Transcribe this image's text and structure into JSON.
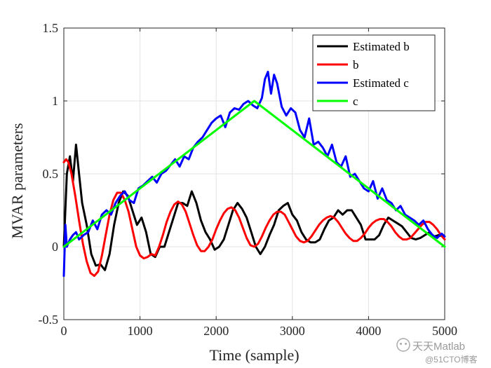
{
  "chart_data": {
    "type": "line",
    "title": "",
    "xlabel": "Time (sample)",
    "ylabel": "MVAR parameters",
    "xlim": [
      0,
      5000
    ],
    "ylim": [
      -0.5,
      1.5
    ],
    "xticks": [
      0,
      1000,
      2000,
      3000,
      4000,
      5000
    ],
    "xtick_labels": [
      "0",
      "1000",
      "2000",
      "3000",
      "4000",
      "5000"
    ],
    "yticks": [
      -0.5,
      0,
      0.5,
      1,
      1.5
    ],
    "ytick_labels": [
      "-0.5",
      "0",
      "0.5",
      "1",
      "1.5"
    ],
    "grid": true,
    "legend_position": "top-right",
    "series": [
      {
        "name": "Estimated b",
        "color": "#000000",
        "x": [
          0,
          40,
          80,
          120,
          160,
          200,
          240,
          300,
          360,
          420,
          480,
          540,
          600,
          660,
          720,
          780,
          840,
          900,
          960,
          1020,
          1080,
          1140,
          1200,
          1260,
          1320,
          1380,
          1440,
          1500,
          1560,
          1620,
          1680,
          1740,
          1800,
          1860,
          1920,
          1980,
          2040,
          2100,
          2160,
          2220,
          2280,
          2340,
          2400,
          2460,
          2520,
          2580,
          2640,
          2700,
          2760,
          2820,
          2880,
          2940,
          3000,
          3060,
          3120,
          3180,
          3240,
          3300,
          3360,
          3420,
          3480,
          3540,
          3600,
          3660,
          3720,
          3780,
          3840,
          3900,
          3960,
          4020,
          4080,
          4140,
          4200,
          4260,
          4320,
          4380,
          4440,
          4500,
          4560,
          4620,
          4680,
          4740,
          4800,
          4860,
          4920,
          4980
        ],
        "values": [
          0.0,
          0.5,
          0.62,
          0.45,
          0.7,
          0.5,
          0.3,
          0.15,
          -0.05,
          -0.13,
          -0.12,
          -0.16,
          -0.05,
          0.15,
          0.3,
          0.38,
          0.35,
          0.25,
          0.15,
          0.2,
          0.1,
          -0.05,
          -0.07,
          0.0,
          0.0,
          0.1,
          0.2,
          0.3,
          0.3,
          0.28,
          0.38,
          0.3,
          0.18,
          0.1,
          0.05,
          -0.02,
          0.0,
          0.05,
          0.15,
          0.25,
          0.3,
          0.26,
          0.2,
          0.1,
          0.0,
          -0.05,
          0.0,
          0.08,
          0.15,
          0.25,
          0.28,
          0.3,
          0.22,
          0.18,
          0.1,
          0.05,
          0.03,
          0.03,
          0.05,
          0.12,
          0.18,
          0.2,
          0.25,
          0.22,
          0.25,
          0.25,
          0.2,
          0.15,
          0.05,
          0.05,
          0.05,
          0.08,
          0.15,
          0.2,
          0.18,
          0.16,
          0.14,
          0.1,
          0.06,
          0.05,
          0.06,
          0.08,
          0.1,
          0.07,
          0.08,
          0.07
        ]
      },
      {
        "name": "b",
        "color": "#ff0000",
        "x": [
          0,
          30,
          60,
          100,
          150,
          200,
          250,
          300,
          350,
          400,
          450,
          500,
          550,
          600,
          650,
          700,
          750,
          800,
          850,
          900,
          950,
          1000,
          1050,
          1100,
          1150,
          1200,
          1250,
          1300,
          1350,
          1400,
          1450,
          1500,
          1550,
          1600,
          1650,
          1700,
          1750,
          1800,
          1850,
          1900,
          1950,
          2000,
          2050,
          2100,
          2150,
          2200,
          2250,
          2300,
          2350,
          2400,
          2450,
          2500,
          2550,
          2600,
          2650,
          2700,
          2750,
          2800,
          2850,
          2900,
          2950,
          3000,
          3050,
          3100,
          3150,
          3200,
          3250,
          3300,
          3350,
          3400,
          3450,
          3500,
          3550,
          3600,
          3650,
          3700,
          3750,
          3800,
          3850,
          3900,
          3950,
          4000,
          4050,
          4100,
          4150,
          4200,
          4250,
          4300,
          4350,
          4400,
          4450,
          4500,
          4550,
          4600,
          4650,
          4700,
          4750,
          4800,
          4850,
          4900,
          4950,
          5000
        ],
        "values": [
          0.58,
          0.6,
          0.58,
          0.5,
          0.35,
          0.18,
          0.02,
          -0.1,
          -0.18,
          -0.2,
          -0.17,
          -0.06,
          0.08,
          0.22,
          0.32,
          0.37,
          0.37,
          0.32,
          0.24,
          0.12,
          0.0,
          -0.06,
          -0.08,
          -0.07,
          -0.05,
          -0.06,
          0.0,
          0.08,
          0.17,
          0.24,
          0.29,
          0.31,
          0.29,
          0.24,
          0.16,
          0.08,
          0.01,
          -0.03,
          -0.03,
          0.0,
          0.05,
          0.12,
          0.18,
          0.23,
          0.26,
          0.27,
          0.25,
          0.2,
          0.13,
          0.06,
          0.01,
          0.0,
          0.02,
          0.07,
          0.13,
          0.18,
          0.22,
          0.24,
          0.24,
          0.22,
          0.17,
          0.12,
          0.07,
          0.04,
          0.03,
          0.04,
          0.07,
          0.11,
          0.15,
          0.18,
          0.2,
          0.21,
          0.2,
          0.17,
          0.13,
          0.09,
          0.06,
          0.04,
          0.04,
          0.06,
          0.09,
          0.13,
          0.16,
          0.18,
          0.19,
          0.19,
          0.17,
          0.14,
          0.1,
          0.07,
          0.05,
          0.05,
          0.06,
          0.09,
          0.12,
          0.15,
          0.17,
          0.17,
          0.15,
          0.12,
          0.08,
          0.05
        ]
      },
      {
        "name": "Estimated c",
        "color": "#0000ff",
        "x": [
          0,
          20,
          40,
          80,
          120,
          160,
          200,
          260,
          320,
          380,
          440,
          500,
          560,
          620,
          680,
          740,
          800,
          860,
          920,
          980,
          1040,
          1100,
          1160,
          1220,
          1280,
          1340,
          1400,
          1460,
          1520,
          1580,
          1640,
          1700,
          1760,
          1820,
          1880,
          1940,
          2000,
          2060,
          2120,
          2180,
          2240,
          2300,
          2360,
          2420,
          2480,
          2540,
          2600,
          2640,
          2680,
          2720,
          2760,
          2800,
          2860,
          2920,
          2980,
          3040,
          3100,
          3160,
          3220,
          3280,
          3340,
          3400,
          3460,
          3520,
          3580,
          3640,
          3700,
          3760,
          3820,
          3880,
          3940,
          4000,
          4060,
          4120,
          4180,
          4240,
          4300,
          4360,
          4420,
          4480,
          4540,
          4600,
          4660,
          4720,
          4780,
          4840,
          4900,
          4960,
          5000
        ],
        "values": [
          -0.2,
          0.15,
          0.0,
          0.05,
          0.08,
          0.1,
          0.05,
          0.08,
          0.1,
          0.18,
          0.12,
          0.22,
          0.25,
          0.22,
          0.3,
          0.35,
          0.38,
          0.32,
          0.3,
          0.4,
          0.42,
          0.45,
          0.48,
          0.44,
          0.5,
          0.52,
          0.56,
          0.6,
          0.55,
          0.62,
          0.6,
          0.68,
          0.72,
          0.75,
          0.8,
          0.85,
          0.88,
          0.9,
          0.82,
          0.92,
          0.95,
          0.94,
          0.98,
          1.0,
          0.97,
          0.95,
          1.02,
          1.15,
          1.2,
          1.05,
          1.18,
          1.12,
          0.96,
          0.9,
          0.95,
          0.92,
          0.8,
          0.75,
          0.88,
          0.7,
          0.72,
          0.68,
          0.62,
          0.7,
          0.58,
          0.55,
          0.62,
          0.48,
          0.5,
          0.45,
          0.4,
          0.38,
          0.45,
          0.33,
          0.4,
          0.32,
          0.3,
          0.25,
          0.28,
          0.22,
          0.2,
          0.18,
          0.15,
          0.18,
          0.12,
          0.08,
          0.06,
          0.09,
          0.07
        ]
      },
      {
        "name": "c",
        "color": "#00ff00",
        "x": [
          0,
          2500,
          5000
        ],
        "values": [
          0.0,
          1.0,
          0.0
        ]
      }
    ]
  },
  "watermark": {
    "title": "天天Matlab",
    "subtitle": "@51CTO博客"
  }
}
